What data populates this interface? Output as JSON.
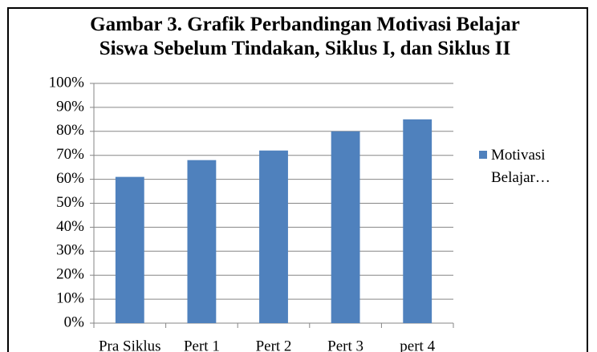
{
  "chart_data": {
    "type": "bar",
    "title": "Gambar 3. Grafik Perbandingan Motivasi Belajar Siswa Sebelum Tindakan, Siklus I, dan Siklus II",
    "categories": [
      "Pra Siklus",
      "Pert 1",
      "Pert 2",
      "Pert 3",
      "pert 4"
    ],
    "series": [
      {
        "name": "Motivasi Belajar…",
        "color": "#4f81bd",
        "values": [
          61,
          68,
          72,
          80,
          85
        ]
      }
    ],
    "ylim": [
      0,
      100
    ],
    "yticks": [
      {
        "value": 0,
        "label": "0%"
      },
      {
        "value": 10,
        "label": "10%"
      },
      {
        "value": 20,
        "label": "20%"
      },
      {
        "value": 30,
        "label": "30%"
      },
      {
        "value": 40,
        "label": "40%"
      },
      {
        "value": 50,
        "label": "50%"
      },
      {
        "value": 60,
        "label": "60%"
      },
      {
        "value": 70,
        "label": "70%"
      },
      {
        "value": 80,
        "label": "80%"
      },
      {
        "value": 90,
        "label": "90%"
      },
      {
        "value": 100,
        "label": "100%"
      }
    ],
    "grid": true,
    "legend": "right"
  }
}
